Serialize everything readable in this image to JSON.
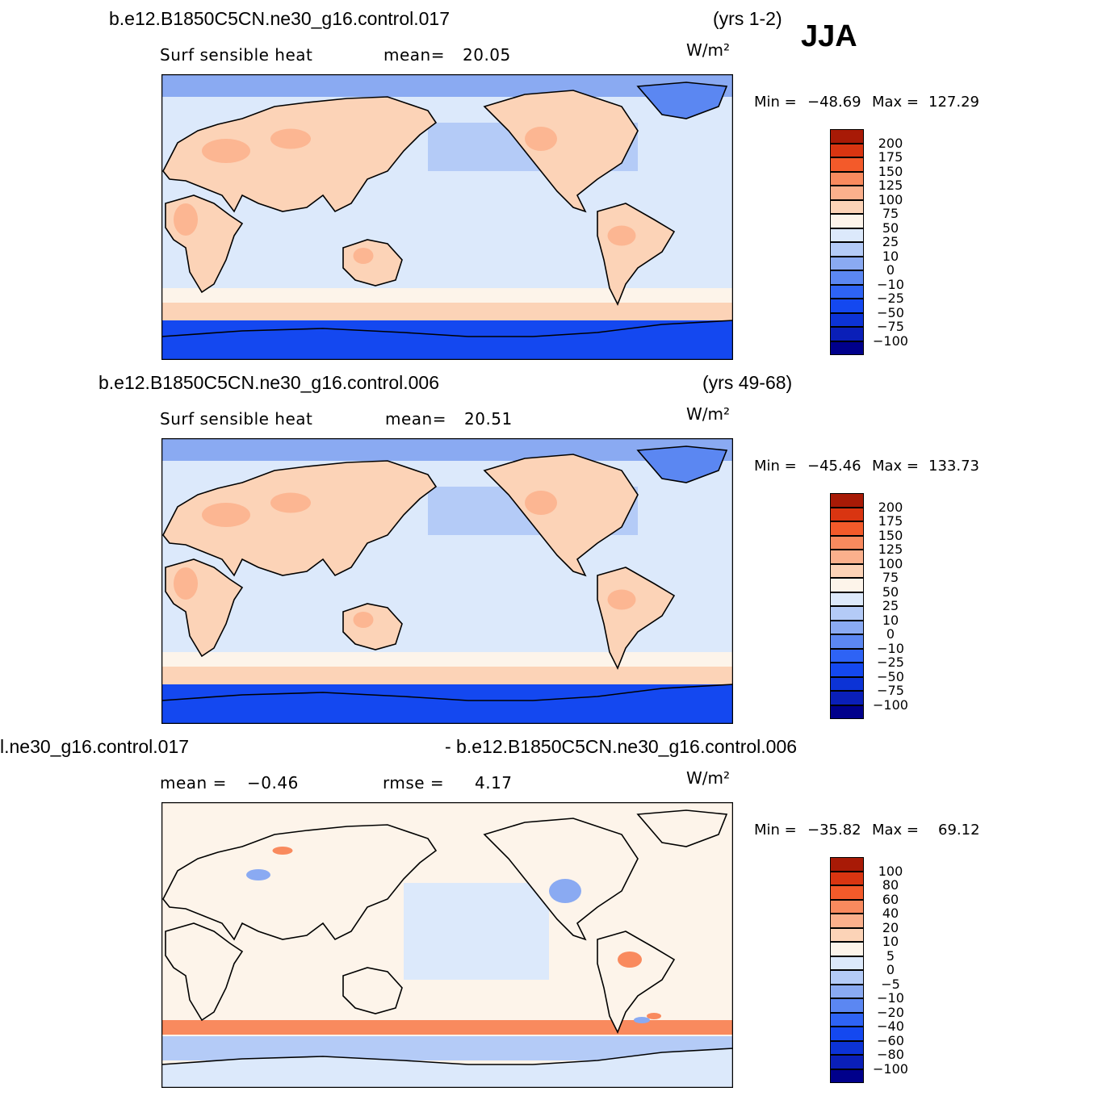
{
  "season": "JJA",
  "panels": [
    {
      "case": "b.e12.B1850C5CN.ne30_g16.control.017",
      "years": "(yrs 1-2)",
      "variable": "Surf sensible heat",
      "stat1_label": "mean=",
      "stat1_value": "20.05",
      "units": "W/m²",
      "min_label": "Min =",
      "min_value": "−48.69",
      "max_label": "Max =",
      "max_value": "127.29",
      "legend_levels": [
        "200",
        "175",
        "150",
        "125",
        "100",
        "75",
        "50",
        "25",
        "10",
        "0",
        "−10",
        "−25",
        "−50",
        "−75",
        "−100"
      ]
    },
    {
      "case": "b.e12.B1850C5CN.ne30_g16.control.006",
      "years": "(yrs 49-68)",
      "variable": "Surf sensible heat",
      "stat1_label": "mean=",
      "stat1_value": "20.51",
      "units": "W/m²",
      "min_label": "Min =",
      "min_value": "−45.46",
      "max_label": "Max =",
      "max_value": "133.73",
      "legend_levels": [
        "200",
        "175",
        "150",
        "125",
        "100",
        "75",
        "50",
        "25",
        "10",
        "0",
        "−10",
        "−25",
        "−50",
        "−75",
        "−100"
      ]
    },
    {
      "case_left": "l.ne30_g16.control.017",
      "case_right": "- b.e12.B1850C5CN.ne30_g16.control.006",
      "stat1_label": "mean =",
      "stat1_value": "−0.46",
      "stat2_label": "rmse =",
      "stat2_value": "4.17",
      "units": "W/m²",
      "min_label": "Min =",
      "min_value": "−35.82",
      "max_label": "Max =",
      "max_value": "69.12",
      "legend_levels": [
        "100",
        "80",
        "60",
        "40",
        "20",
        "10",
        "5",
        "0",
        "−5",
        "−10",
        "−20",
        "−40",
        "−60",
        "−80",
        "−100"
      ]
    }
  ],
  "chart_data": [
    {
      "type": "heatmap",
      "title": "Surf sensible heat",
      "units": "W/m²",
      "mean": 20.05,
      "min": -48.69,
      "max": 127.29,
      "contour_levels": [
        -100,
        -75,
        -50,
        -25,
        -10,
        0,
        10,
        25,
        50,
        75,
        100,
        125,
        150,
        175,
        200
      ],
      "colors": [
        "#00008b",
        "#0a1fb8",
        "#0c33d6",
        "#1448f0",
        "#2e63f5",
        "#5b87f2",
        "#8aaaf2",
        "#b4cbf7",
        "#dce9fb",
        "#fdf4ea",
        "#fcd3b7",
        "#fbb08c",
        "#f98a5e",
        "#f35a2a",
        "#d93511",
        "#a81a06"
      ]
    },
    {
      "type": "heatmap",
      "title": "Surf sensible heat",
      "units": "W/m²",
      "mean": 20.51,
      "min": -45.46,
      "max": 133.73,
      "contour_levels": [
        -100,
        -75,
        -50,
        -25,
        -10,
        0,
        10,
        25,
        50,
        75,
        100,
        125,
        150,
        175,
        200
      ],
      "colors": [
        "#00008b",
        "#0a1fb8",
        "#0c33d6",
        "#1448f0",
        "#2e63f5",
        "#5b87f2",
        "#8aaaf2",
        "#b4cbf7",
        "#dce9fb",
        "#fdf4ea",
        "#fcd3b7",
        "#fbb08c",
        "#f98a5e",
        "#f35a2a",
        "#d93511",
        "#a81a06"
      ]
    },
    {
      "type": "heatmap",
      "units": "W/m²",
      "mean": -0.46,
      "rmse": 4.17,
      "min": -35.82,
      "max": 69.12,
      "contour_levels": [
        -100,
        -80,
        -60,
        -40,
        -20,
        -10,
        -5,
        0,
        5,
        10,
        20,
        40,
        60,
        80,
        100
      ],
      "colors": [
        "#00008b",
        "#0a1fb8",
        "#0c33d6",
        "#1448f0",
        "#2e63f5",
        "#5b87f2",
        "#8aaaf2",
        "#b4cbf7",
        "#dce9fb",
        "#fdf4ea",
        "#fcd3b7",
        "#fbb08c",
        "#f98a5e",
        "#f35a2a",
        "#d93511",
        "#a81a06"
      ]
    }
  ]
}
